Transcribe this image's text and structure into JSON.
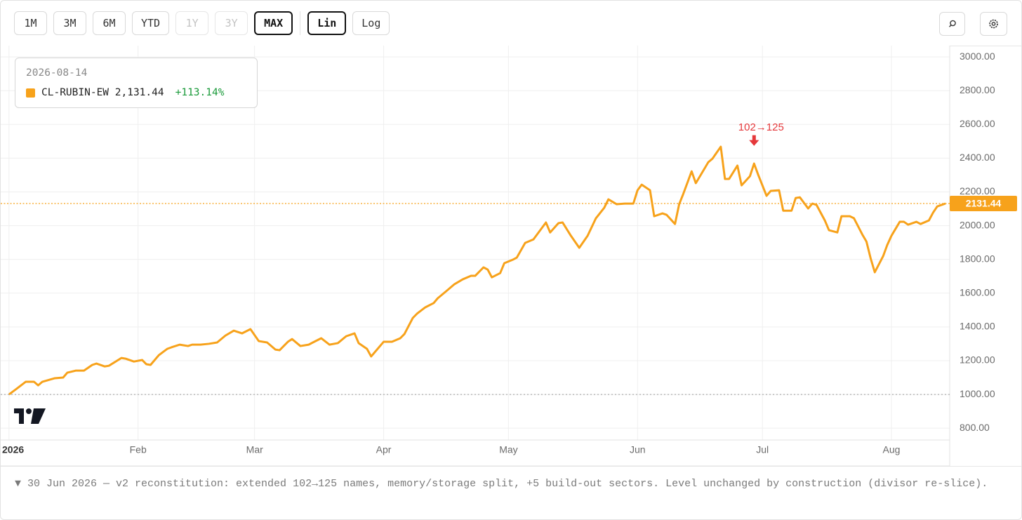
{
  "toolbar": {
    "ranges": [
      "1M",
      "3M",
      "6M",
      "YTD",
      "1Y",
      "3Y",
      "MAX"
    ],
    "active_range": "MAX",
    "disabled_ranges": [
      "1Y",
      "3Y"
    ],
    "scales": [
      "Lin",
      "Log"
    ],
    "active_scale": "Lin"
  },
  "chart_data": {
    "type": "line",
    "x": [
      "2026-01-01",
      "2026-01-03",
      "2026-01-05",
      "2026-01-07",
      "2026-01-08",
      "2026-01-09",
      "2026-01-12",
      "2026-01-14",
      "2026-01-15",
      "2026-01-17",
      "2026-01-19",
      "2026-01-21",
      "2026-01-22",
      "2026-01-24",
      "2026-01-25",
      "2026-01-28",
      "2026-01-29",
      "2026-01-31",
      "2026-02-02",
      "2026-02-03",
      "2026-02-04",
      "2026-02-06",
      "2026-02-08",
      "2026-02-09",
      "2026-02-11",
      "2026-02-13",
      "2026-02-14",
      "2026-02-16",
      "2026-02-18",
      "2026-02-20",
      "2026-02-22",
      "2026-02-24",
      "2026-02-26",
      "2026-02-28",
      "2026-03-02",
      "2026-03-04",
      "2026-03-06",
      "2026-03-07",
      "2026-03-09",
      "2026-03-10",
      "2026-03-12",
      "2026-03-14",
      "2026-03-15",
      "2026-03-17",
      "2026-03-19",
      "2026-03-21",
      "2026-03-23",
      "2026-03-25",
      "2026-03-26",
      "2026-03-28",
      "2026-03-29",
      "2026-03-30",
      "2026-04-01",
      "2026-04-03",
      "2026-04-05",
      "2026-04-06",
      "2026-04-08",
      "2026-04-09",
      "2026-04-11",
      "2026-04-13",
      "2026-04-14",
      "2026-04-16",
      "2026-04-18",
      "2026-04-20",
      "2026-04-22",
      "2026-04-23",
      "2026-04-25",
      "2026-04-26",
      "2026-04-27",
      "2026-04-29",
      "2026-04-30",
      "2026-05-02",
      "2026-05-03",
      "2026-05-05",
      "2026-05-07",
      "2026-05-10",
      "2026-05-11",
      "2026-05-13",
      "2026-05-14",
      "2026-05-16",
      "2026-05-18",
      "2026-05-20",
      "2026-05-22",
      "2026-05-24",
      "2026-05-25",
      "2026-05-27",
      "2026-05-29",
      "2026-05-31",
      "2026-06-01",
      "2026-06-02",
      "2026-06-04",
      "2026-06-05",
      "2026-06-07",
      "2026-06-08",
      "2026-06-10",
      "2026-06-11",
      "2026-06-12",
      "2026-06-14",
      "2026-06-15",
      "2026-06-16",
      "2026-06-18",
      "2026-06-19",
      "2026-06-21",
      "2026-06-22",
      "2026-06-23",
      "2026-06-25",
      "2026-06-26",
      "2026-06-28",
      "2026-06-29",
      "2026-06-30",
      "2026-07-02",
      "2026-07-03",
      "2026-07-05",
      "2026-07-06",
      "2026-07-08",
      "2026-07-09",
      "2026-07-10",
      "2026-07-12",
      "2026-07-13",
      "2026-07-14",
      "2026-07-16",
      "2026-07-17",
      "2026-07-19",
      "2026-07-20",
      "2026-07-22",
      "2026-07-23",
      "2026-07-25",
      "2026-07-26",
      "2026-07-27",
      "2026-07-28",
      "2026-07-30",
      "2026-07-31",
      "2026-08-01",
      "2026-08-03",
      "2026-08-04",
      "2026-08-05",
      "2026-08-07",
      "2026-08-08",
      "2026-08-10",
      "2026-08-11",
      "2026-08-12",
      "2026-08-14"
    ],
    "series": [
      {
        "name": "CL-RUBIN-EW",
        "color": "#f7a21b",
        "values": [
          1000,
          1037,
          1075,
          1075,
          1054,
          1075,
          1096,
          1100,
          1129,
          1141,
          1141,
          1175,
          1183,
          1166,
          1170,
          1216,
          1212,
          1195,
          1204,
          1179,
          1175,
          1233,
          1270,
          1279,
          1295,
          1287,
          1295,
          1295,
          1300,
          1308,
          1349,
          1378,
          1362,
          1387,
          1316,
          1308,
          1266,
          1262,
          1312,
          1328,
          1287,
          1295,
          1308,
          1333,
          1295,
          1304,
          1345,
          1362,
          1304,
          1270,
          1225,
          1254,
          1312,
          1312,
          1333,
          1358,
          1453,
          1478,
          1516,
          1541,
          1570,
          1611,
          1653,
          1682,
          1703,
          1703,
          1753,
          1740,
          1694,
          1719,
          1778,
          1798,
          1811,
          1898,
          1919,
          2019,
          1960,
          2015,
          2019,
          1940,
          1869,
          1940,
          2044,
          2106,
          2156,
          2127,
          2131,
          2131,
          2210,
          2243,
          2210,
          2056,
          2073,
          2064,
          2010,
          2127,
          2189,
          2322,
          2252,
          2293,
          2376,
          2397,
          2468,
          2277,
          2277,
          2356,
          2239,
          2293,
          2368,
          2301,
          2177,
          2206,
          2210,
          2089,
          2089,
          2164,
          2168,
          2102,
          2131,
          2123,
          2031,
          1973,
          1960,
          2056,
          2056,
          2044,
          1948,
          1906,
          1807,
          1724,
          1819,
          1886,
          1940,
          2023,
          2023,
          2006,
          2023,
          2010,
          2031,
          2077,
          2114,
          2131.44
        ]
      }
    ],
    "xlim": [
      "2025-12-30",
      "2026-08-15"
    ],
    "xticks": [
      {
        "value": "2026-01-01",
        "label": "2026"
      },
      {
        "value": "2026-02-01",
        "label": "Feb"
      },
      {
        "value": "2026-03-01",
        "label": "Mar"
      },
      {
        "value": "2026-04-01",
        "label": "Apr"
      },
      {
        "value": "2026-05-01",
        "label": "May"
      },
      {
        "value": "2026-06-01",
        "label": "Jun"
      },
      {
        "value": "2026-07-01",
        "label": "Jul"
      },
      {
        "value": "2026-08-01",
        "label": "Aug"
      }
    ],
    "ylim": [
      730,
      3067
    ],
    "yticks": [
      {
        "value": 800,
        "label": "800.00"
      },
      {
        "value": 1000,
        "label": "1000.00"
      },
      {
        "value": 1200,
        "label": "1200.00"
      },
      {
        "value": 1400,
        "label": "1400.00"
      },
      {
        "value": 1600,
        "label": "1600.00"
      },
      {
        "value": 1800,
        "label": "1800.00"
      },
      {
        "value": 2000,
        "label": "2000.00"
      },
      {
        "value": 2200,
        "label": "2200.00"
      },
      {
        "value": 2400,
        "label": "2400.00"
      },
      {
        "value": 2600,
        "label": "2600.00"
      },
      {
        "value": 2800,
        "label": "2800.00"
      },
      {
        "value": 3000,
        "label": "3000.00"
      }
    ],
    "grid": true,
    "log_scale": false,
    "baseline": 1000,
    "last_value_label": "2131.44",
    "annotations": [
      {
        "x": "2026-06-29",
        "text": "102→125",
        "color": "#e5383b"
      }
    ],
    "tooltip": {
      "date": "2026-08-14",
      "value_label": "2,131.44",
      "change_label": "+113.14%"
    }
  },
  "footnote": "▼ 30 Jun 2026 — v2 reconstitution: extended 102→125 names, memory/storage split, +5 build-out sectors. Level unchanged by construction (divisor re-slice)."
}
